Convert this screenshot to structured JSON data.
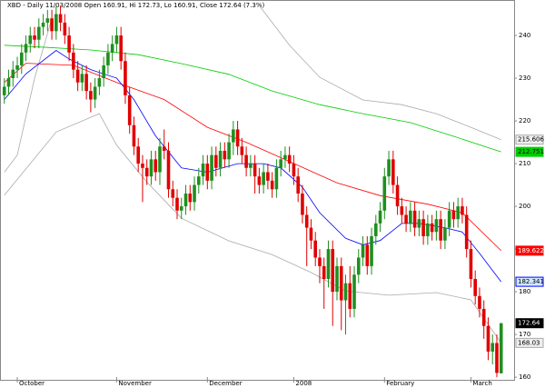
{
  "chart_data": {
    "type": "candlestick",
    "title": "XBD - Daily 11/03/2008 Open 160.91, Hi 172.73, Lo 160.91, Close 172.64 (7.3%)",
    "up_color": "#1f8f1f",
    "down_color": "#e00000",
    "xlim": [
      -1,
      118
    ],
    "xticks": [
      {
        "value": 3,
        "label": "October"
      },
      {
        "value": 26,
        "label": "November"
      },
      {
        "value": 47,
        "label": "December"
      },
      {
        "value": 67,
        "label": "2008"
      },
      {
        "value": 88,
        "label": "February"
      },
      {
        "value": 108,
        "label": "March"
      }
    ],
    "ylim": [
      159.6,
      248.3
    ],
    "yticks": [
      160,
      170,
      180,
      190,
      200,
      210,
      220,
      230,
      240
    ],
    "open": [
      226,
      228,
      230,
      232,
      233,
      236,
      238,
      240,
      239,
      242,
      243,
      244,
      241,
      245,
      243,
      240,
      236,
      232,
      229,
      231,
      227,
      225,
      228,
      230,
      233,
      236,
      238,
      240,
      234,
      226,
      219,
      214,
      210,
      209,
      207,
      211,
      208,
      214,
      213,
      204,
      202,
      199,
      200,
      203,
      201,
      205,
      207,
      210,
      206,
      212,
      209,
      213,
      211,
      215,
      218,
      214,
      212,
      209,
      210,
      207,
      205,
      208,
      206,
      204,
      209,
      211,
      212,
      210,
      207,
      203,
      198,
      195,
      192,
      188,
      186,
      183,
      190,
      180,
      186,
      178,
      182,
      176,
      184,
      188,
      191,
      186,
      193,
      196,
      199,
      207,
      211,
      205,
      200,
      198,
      196,
      199,
      195,
      197,
      193,
      196,
      194,
      197,
      192,
      195,
      199,
      197,
      200,
      198,
      190,
      183,
      179,
      176,
      172,
      166,
      168,
      160.91
    ],
    "high": [
      230,
      232,
      234,
      235,
      238,
      240,
      242,
      242,
      244,
      245,
      246,
      246,
      247,
      247,
      245,
      242,
      238,
      234,
      233,
      233,
      229,
      230,
      232,
      235,
      238,
      240,
      242,
      242,
      236,
      228,
      221,
      216,
      212,
      211,
      213,
      213,
      216,
      218,
      215,
      206,
      204,
      202,
      205,
      205,
      207,
      209,
      212,
      212,
      214,
      214,
      215,
      215,
      217,
      220,
      220,
      216,
      214,
      212,
      212,
      209,
      210,
      210,
      208,
      211,
      213,
      214,
      214,
      212,
      209,
      205,
      200,
      197,
      194,
      190,
      188,
      192,
      192,
      188,
      188,
      184,
      186,
      186,
      190,
      193,
      193,
      195,
      198,
      201,
      209,
      213,
      213,
      207,
      202,
      200,
      201,
      201,
      199,
      199,
      198,
      198,
      199,
      199,
      197,
      201,
      201,
      202,
      202,
      200,
      192,
      185,
      181,
      178,
      174,
      170,
      170,
      172.73
    ],
    "low": [
      224,
      226,
      228,
      230,
      231,
      234,
      236,
      237,
      237,
      240,
      241,
      239,
      239,
      241,
      238,
      234,
      230,
      227,
      227,
      225,
      222,
      223,
      226,
      228,
      231,
      234,
      236,
      232,
      224,
      217,
      212,
      208,
      201,
      205,
      205,
      206,
      205,
      211,
      202,
      200,
      197,
      197,
      198,
      199,
      199,
      203,
      205,
      204,
      204,
      207,
      207,
      209,
      209,
      212,
      212,
      210,
      207,
      207,
      203,
      203,
      203,
      204,
      202,
      202,
      207,
      209,
      208,
      205,
      201,
      196,
      186,
      190,
      186,
      182,
      176,
      181,
      172,
      178,
      171,
      170,
      174,
      174,
      182,
      186,
      184,
      184,
      191,
      194,
      197,
      205,
      203,
      198,
      196,
      194,
      194,
      193,
      193,
      191,
      191,
      192,
      192,
      190,
      190,
      193,
      195,
      195,
      196,
      188,
      181,
      177,
      174,
      169,
      164,
      163,
      160,
      160.91
    ],
    "close": [
      228,
      230,
      232,
      233,
      236,
      238,
      240,
      239,
      242,
      243,
      244,
      241,
      245,
      243,
      240,
      236,
      232,
      229,
      231,
      227,
      225,
      228,
      230,
      233,
      236,
      238,
      240,
      234,
      226,
      219,
      214,
      210,
      209,
      207,
      211,
      208,
      214,
      213,
      204,
      202,
      199,
      200,
      203,
      201,
      205,
      207,
      210,
      206,
      212,
      209,
      213,
      211,
      215,
      218,
      214,
      212,
      209,
      210,
      207,
      205,
      208,
      206,
      204,
      209,
      211,
      212,
      210,
      207,
      203,
      198,
      195,
      192,
      188,
      186,
      183,
      190,
      180,
      186,
      178,
      182,
      176,
      184,
      188,
      191,
      186,
      193,
      196,
      199,
      207,
      211,
      205,
      200,
      198,
      196,
      199,
      195,
      197,
      193,
      196,
      194,
      197,
      192,
      195,
      199,
      197,
      200,
      198,
      190,
      183,
      179,
      176,
      172,
      166,
      168,
      161,
      172.64
    ],
    "lines": [
      {
        "color": "#aaaaaa",
        "x": [
          0,
          3,
          7,
          11,
          35,
          59,
          66,
          73,
          83,
          92,
          100,
          108,
          115
        ],
        "values": [
          208,
          212,
          230,
          244,
          null,
          247,
          237.7,
          230.2,
          224.9,
          223.8,
          221.7,
          218.5,
          215.606
        ],
        "end_value": 215.606
      },
      {
        "color": "#aaaaaa",
        "x": [
          0,
          12,
          22,
          26,
          33,
          41,
          52,
          62,
          71,
          79,
          89,
          100,
          108,
          115
        ],
        "values": [
          202.6,
          217.4,
          221.7,
          214.3,
          205.7,
          197.2,
          191.9,
          188.7,
          184.5,
          180.2,
          179.2,
          179.8,
          178.1,
          168.03
        ],
        "end_value": 168.03
      },
      {
        "color": "#00cc00",
        "x": [
          0,
          10,
          20,
          31,
          41,
          52,
          62,
          73,
          83,
          94,
          104,
          115
        ],
        "values": [
          237.7,
          237.2,
          236.6,
          235.5,
          233.4,
          230.9,
          227,
          223.8,
          221.7,
          219.6,
          216.4,
          212.751
        ],
        "end_value": 212.751
      },
      {
        "color": "#ff0000",
        "x": [
          0,
          5,
          16,
          26,
          37,
          47,
          56,
          66,
          77,
          87,
          98,
          106,
          115
        ],
        "values": [
          229,
          233.5,
          233,
          229,
          225,
          218.5,
          215,
          210.5,
          205.5,
          202.5,
          200.5,
          198.5,
          189.622
        ],
        "end_value": 189.622
      },
      {
        "color": "#0000ff",
        "x": [
          0,
          5,
          12,
          15,
          20,
          26,
          30,
          35,
          41,
          47,
          54,
          60,
          64,
          69,
          73,
          79,
          83,
          87,
          92,
          96,
          102,
          106,
          110,
          115
        ],
        "values": [
          225,
          231,
          236.5,
          234.5,
          232,
          230,
          225,
          216.5,
          209,
          208,
          210,
          210,
          209,
          204.5,
          198.5,
          192.5,
          191,
          192,
          196,
          196,
          195,
          194,
          189,
          182.341
        ],
        "end_value": 182.341
      }
    ]
  }
}
